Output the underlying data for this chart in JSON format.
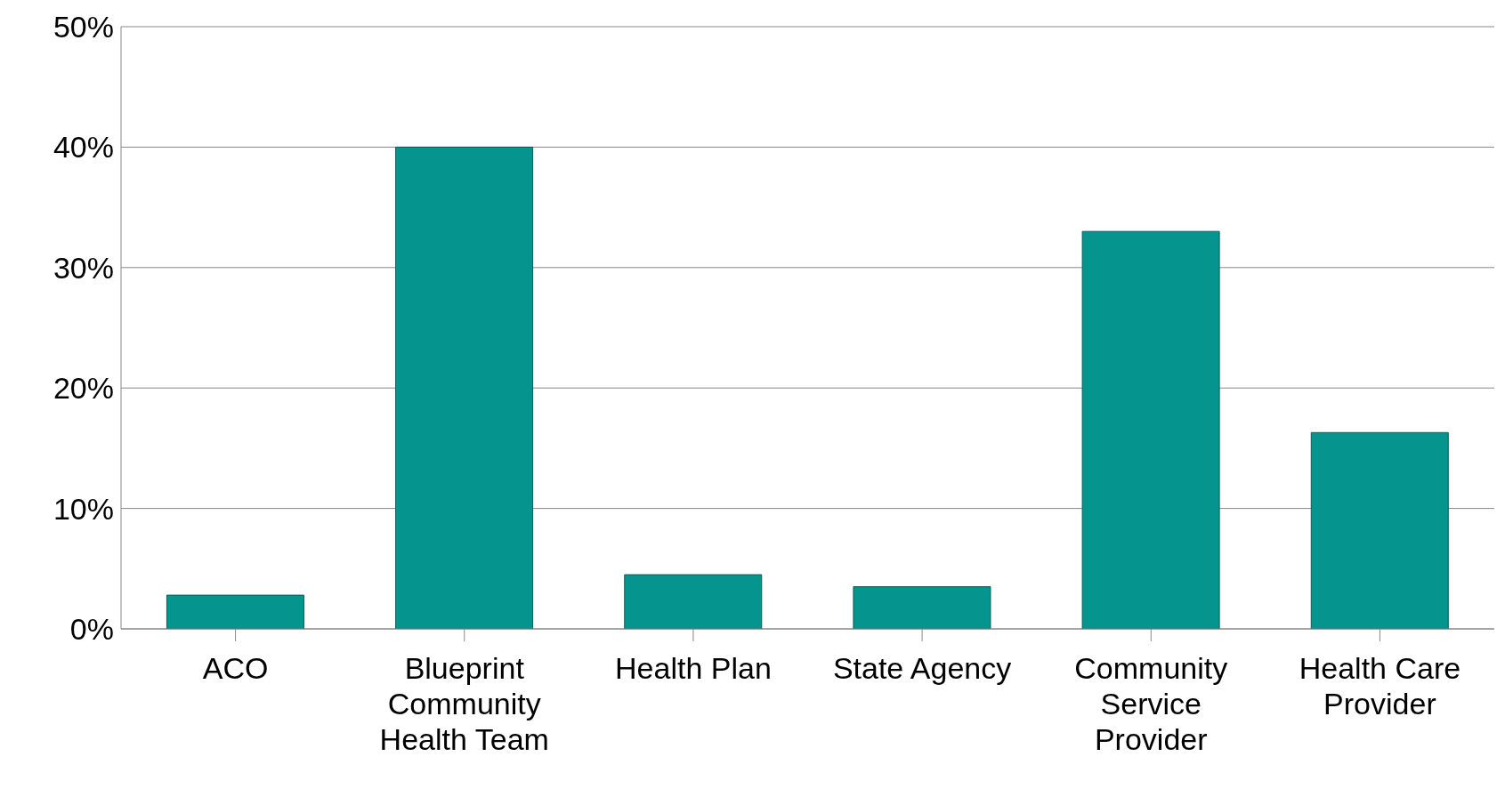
{
  "chart_data": {
    "type": "bar",
    "categories": [
      "ACO",
      "Blueprint Community Health Team",
      "Health Plan",
      "State Agency",
      "Community Service Provider",
      "Health Care Provider"
    ],
    "values": [
      2.8,
      40,
      4.5,
      3.5,
      33,
      16.3
    ],
    "color": "#06948f",
    "ylim": [
      0,
      50
    ],
    "yticks": [
      {
        "value": 0,
        "label": "0%"
      },
      {
        "value": 10,
        "label": "10%"
      },
      {
        "value": 20,
        "label": "20%"
      },
      {
        "value": 30,
        "label": "30%"
      },
      {
        "value": 40,
        "label": "40%"
      },
      {
        "value": 50,
        "label": "50%"
      }
    ],
    "grid": "y",
    "legend": false
  }
}
